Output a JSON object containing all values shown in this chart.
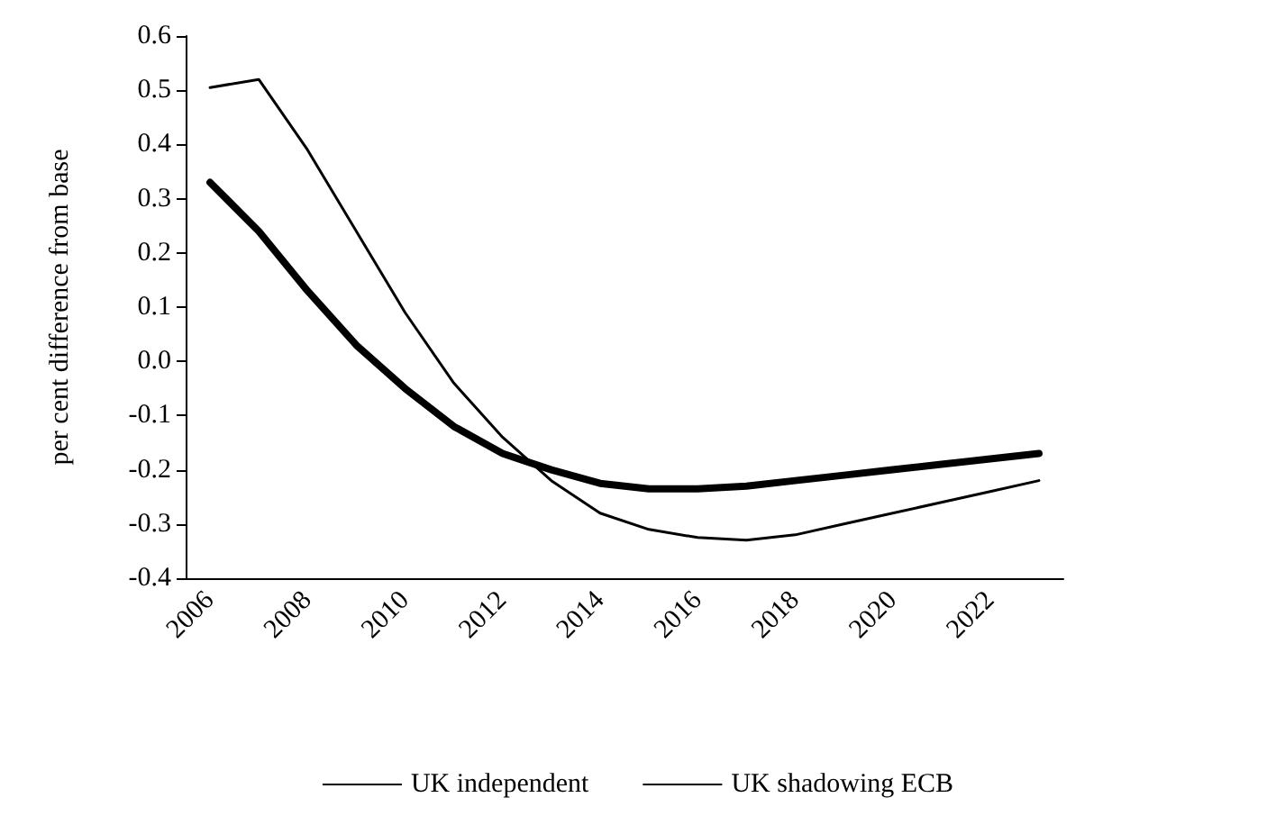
{
  "chart_data": {
    "type": "line",
    "ylabel": "per cent difference from base",
    "categories": [
      "2006",
      null,
      "2008",
      null,
      "2010",
      null,
      "2012",
      null,
      "2014",
      null,
      "2016",
      null,
      "2018",
      null,
      "2020",
      null,
      "2022",
      null
    ],
    "series": [
      {
        "name": "UK independent",
        "color": "#000000",
        "values": [
          0.33,
          0.24,
          0.13,
          0.03,
          -0.05,
          -0.12,
          -0.17,
          -0.2,
          -0.225,
          -0.235,
          -0.235,
          -0.23,
          -0.22,
          -0.21,
          -0.2,
          -0.19,
          -0.18,
          -0.17
        ]
      },
      {
        "name": "UK shadowing ECB",
        "color": "#000000",
        "values": [
          0.505,
          0.52,
          0.39,
          0.24,
          0.09,
          -0.04,
          -0.14,
          -0.22,
          -0.28,
          -0.31,
          -0.325,
          -0.33,
          -0.32,
          -0.3,
          -0.28,
          -0.26,
          -0.24,
          -0.22
        ]
      }
    ],
    "ylim": [
      -0.4,
      0.6
    ],
    "yticks": [
      -0.4,
      -0.3,
      -0.2,
      -0.1,
      {
        "value": 0,
        "label": "0.0"
      },
      0.1,
      0.2,
      0.3,
      0.4,
      0.5,
      0.6
    ],
    "grid": false,
    "legend": "bottom",
    "marker": "none",
    "line_style": "solid"
  }
}
